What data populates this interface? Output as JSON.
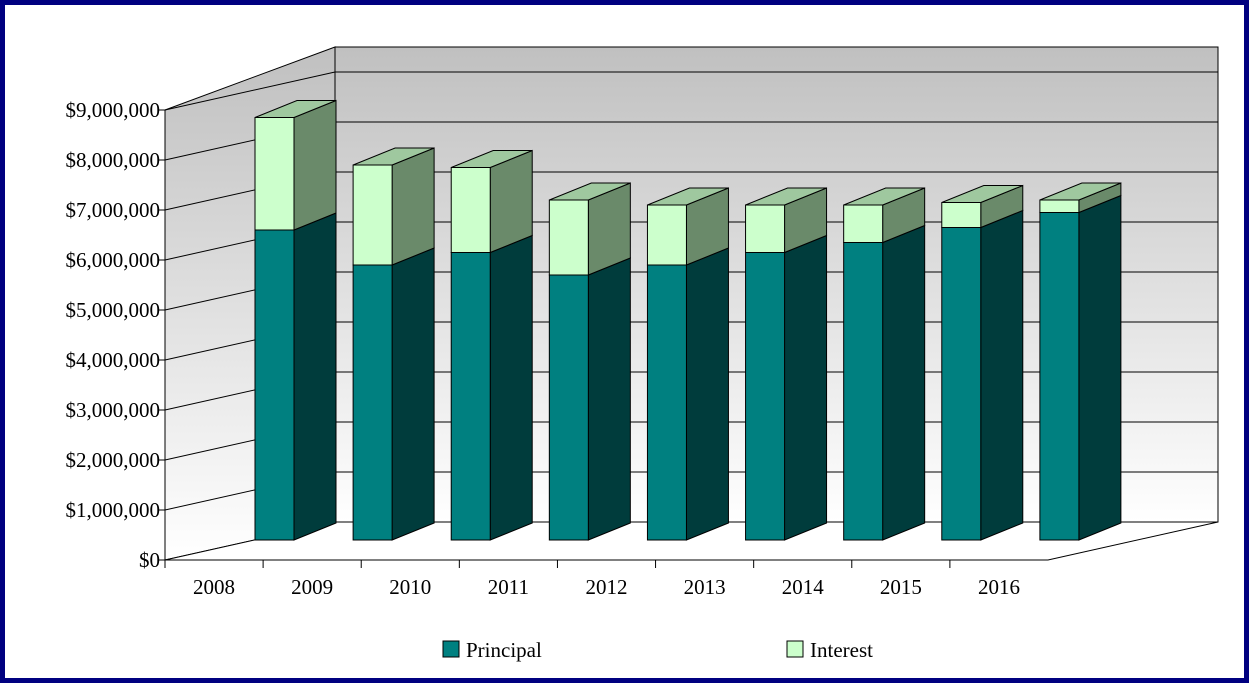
{
  "colors": {
    "border": "#000080",
    "principal_front": "#008080",
    "principal_side": "#003c3c",
    "principal_top": "#4d9d9d",
    "interest_front": "#ccffcc",
    "interest_side": "#6a8a6a",
    "interest_top": "#9fc89f",
    "wall": "#c0c0c0",
    "floor": "#ffffff"
  },
  "chart_data": {
    "type": "bar",
    "stacked": true,
    "three_d": true,
    "categories": [
      "2008",
      "2009",
      "2010",
      "2011",
      "2012",
      "2013",
      "2014",
      "2015",
      "2016"
    ],
    "series": [
      {
        "name": "Principal",
        "values": [
          6200000,
          5500000,
          5750000,
          5300000,
          5500000,
          5750000,
          5950000,
          6250000,
          6550000
        ]
      },
      {
        "name": "Interest",
        "values": [
          2250000,
          2000000,
          1700000,
          1500000,
          1200000,
          950000,
          750000,
          500000,
          250000
        ]
      }
    ],
    "ylim": [
      0,
      9000000
    ],
    "y_ticks": [
      "$0",
      "$1,000,000",
      "$2,000,000",
      "$3,000,000",
      "$4,000,000",
      "$5,000,000",
      "$6,000,000",
      "$7,000,000",
      "$8,000,000",
      "$9,000,000"
    ],
    "grid": true,
    "legend_position": "bottom"
  }
}
